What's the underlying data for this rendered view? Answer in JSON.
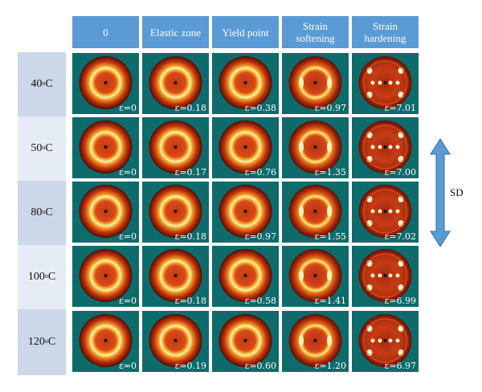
{
  "columns": [
    "0",
    "Elastic zone",
    "Yield point",
    "Strain softening",
    "Strain hardening"
  ],
  "rows": [
    {
      "temp": "40",
      "unit": "o",
      "suffix": "C",
      "strains": [
        "ε=0",
        "ε=0.18",
        "ε=0.38",
        "ε=0.97",
        "ε=7.01"
      ]
    },
    {
      "temp": "50",
      "unit": "o",
      "suffix": "C",
      "strains": [
        "ε=0",
        "ε=0.17",
        "ε=0.76",
        "ε=1.35",
        "ε=7.00"
      ]
    },
    {
      "temp": "80",
      "unit": "o",
      "suffix": "C",
      "strains": [
        "ε=0",
        "ε=0.18",
        "ε=0.97",
        "ε=1.55",
        "ε=7.02"
      ]
    },
    {
      "temp": "100",
      "unit": "o",
      "suffix": "C",
      "strains": [
        "ε=0",
        "ε=0.18",
        "ε=0.58",
        "ε=1.41",
        "ε=6.99"
      ]
    },
    {
      "temp": "120",
      "unit": "o",
      "suffix": "C",
      "strains": [
        "ε=0",
        "ε=0.19",
        "ε=0.60",
        "ε=1.20",
        "ε=6.97"
      ]
    }
  ],
  "sd_label": "SD",
  "colors": {
    "header_bg": "#5b9bd5",
    "row_label_bg": "#cdd7ea",
    "row_label_alt_bg": "#e6ecf5",
    "detector_bg": "#0e6b6b",
    "arrow": "#5b9bd5"
  }
}
